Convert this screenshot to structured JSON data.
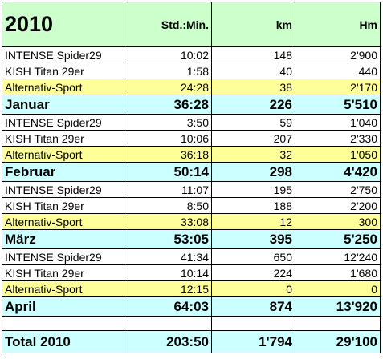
{
  "table": {
    "header": [
      "2010",
      "Std.:Min.",
      "km",
      "Hm"
    ],
    "rows": [
      [
        "INTENSE Spider29",
        "10:02",
        "148",
        "2'900"
      ],
      [
        "KISH Titan 29er",
        "1:58",
        "40",
        "440"
      ],
      [
        "Alternativ-Sport",
        "24:28",
        "38",
        "2'170"
      ],
      [
        "Januar",
        "36:28",
        "226",
        "5'510"
      ],
      [
        "INTENSE Spider29",
        "3:50",
        "59",
        "1'040"
      ],
      [
        "KISH Titan 29er",
        "10:06",
        "207",
        "2'330"
      ],
      [
        "Alternativ-Sport",
        "36:18",
        "32",
        "1'050"
      ],
      [
        "Februar",
        "50:14",
        "298",
        "4'420"
      ],
      [
        "INTENSE Spider29",
        "11:07",
        "195",
        "2'750"
      ],
      [
        "KISH Titan 29er",
        "8:50",
        "188",
        "2'200"
      ],
      [
        "Alternativ-Sport",
        "33:08",
        "12",
        "300"
      ],
      [
        "März",
        "53:05",
        "395",
        "5'250"
      ],
      [
        "INTENSE Spider29",
        "41:34",
        "650",
        "12'240"
      ],
      [
        "KISH Titan 29er",
        "10:14",
        "224",
        "1'680"
      ],
      [
        "Alternativ-Sport",
        "12:15",
        "0",
        "0"
      ],
      [
        "April",
        "64:03",
        "874",
        "13'920"
      ]
    ],
    "total": [
      "Total 2010",
      "203:50",
      "1'794",
      "29'100"
    ]
  }
}
